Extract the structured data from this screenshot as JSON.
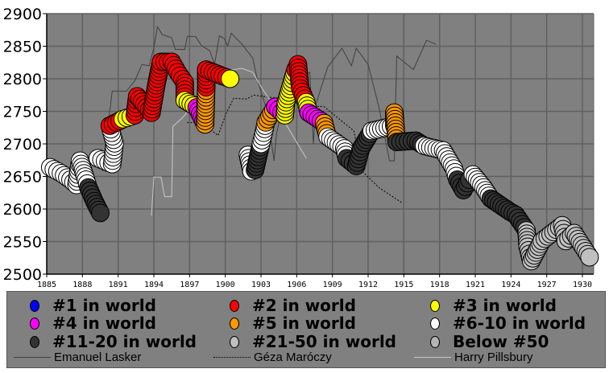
{
  "chart_data": {
    "type": "scatter",
    "title": "",
    "xlabel": "",
    "ylabel": "",
    "xlim": [
      1885,
      1931
    ],
    "ylim": [
      2500,
      2900
    ],
    "xticks": [
      "1885",
      "1888",
      "1891",
      "1894",
      "1897",
      "1900",
      "1903",
      "1906",
      "1909",
      "1912",
      "1915",
      "1918",
      "1921",
      "1924",
      "1927",
      "1930"
    ],
    "yticks": [
      "2500",
      "2550",
      "2600",
      "2650",
      "2700",
      "2750",
      "2800",
      "2850",
      "2900"
    ],
    "grid": true,
    "plot_background": "#808080",
    "categories": [
      {
        "key": "r1",
        "label": "#1 in world",
        "color": "#0000ff"
      },
      {
        "key": "r2",
        "label": "#2 in world",
        "color": "#ff0000"
      },
      {
        "key": "r3",
        "label": "#3 in world",
        "color": "#ffff00"
      },
      {
        "key": "r4",
        "label": "#4 in world",
        "color": "#ff00ff"
      },
      {
        "key": "r5",
        "label": "#5 in world",
        "color": "#ff9900"
      },
      {
        "key": "r6",
        "label": "#6-10 in world",
        "color": "#ffffff"
      },
      {
        "key": "r11",
        "label": "#11-20 in world",
        "color": "#333333"
      },
      {
        "key": "r21",
        "label": "#21-50 in world",
        "color": "#c0c0c0"
      },
      {
        "key": "r50",
        "label": "Below #50",
        "color": "#b4b4b4"
      }
    ],
    "points": [
      [
        1885.3,
        2664,
        "r6"
      ],
      [
        1886.2,
        2655,
        "r6"
      ],
      [
        1887.0,
        2645,
        "r6"
      ],
      [
        1887.5,
        2637,
        "r6"
      ],
      [
        1887.8,
        2674,
        "r6"
      ],
      [
        1888.3,
        2645,
        "r6"
      ],
      [
        1888.5,
        2633,
        "r11"
      ],
      [
        1889.0,
        2612,
        "r11"
      ],
      [
        1889.5,
        2594,
        "r11"
      ],
      [
        1889.3,
        2678,
        "r6"
      ],
      [
        1890.5,
        2669,
        "r6"
      ],
      [
        1890.7,
        2701,
        "r6"
      ],
      [
        1890.3,
        2728,
        "r2"
      ],
      [
        1891.4,
        2738,
        "r3"
      ],
      [
        1892.4,
        2744,
        "r2"
      ],
      [
        1892.6,
        2773,
        "r2"
      ],
      [
        1893.8,
        2748,
        "r2"
      ],
      [
        1894.2,
        2790,
        "r2"
      ],
      [
        1894.6,
        2826,
        "r2"
      ],
      [
        1895.5,
        2826,
        "r2"
      ],
      [
        1896.0,
        2810,
        "r2"
      ],
      [
        1896.6,
        2794,
        "r2"
      ],
      [
        1896.6,
        2767,
        "r3"
      ],
      [
        1897.6,
        2756,
        "r4"
      ],
      [
        1898.3,
        2730,
        "r5"
      ],
      [
        1898.4,
        2787,
        "r2"
      ],
      [
        1898.4,
        2814,
        "r2"
      ],
      [
        1899.8,
        2804,
        "r2"
      ],
      [
        1900.4,
        2800,
        "r3"
      ],
      [
        1901.9,
        2683,
        "r6"
      ],
      [
        1902.2,
        2658,
        "r6"
      ],
      [
        1902.5,
        2660,
        "r11"
      ],
      [
        1903.0,
        2700,
        "r6"
      ],
      [
        1903.3,
        2723,
        "r6"
      ],
      [
        1903.4,
        2733,
        "r5"
      ],
      [
        1904.2,
        2757,
        "r4"
      ],
      [
        1905.0,
        2744,
        "r3"
      ],
      [
        1905.1,
        2764,
        "r3"
      ],
      [
        1905.9,
        2814,
        "r2"
      ],
      [
        1906.1,
        2822,
        "r2"
      ],
      [
        1906.3,
        2785,
        "r2"
      ],
      [
        1906.8,
        2764,
        "r3"
      ],
      [
        1907.0,
        2748,
        "r4"
      ],
      [
        1908.3,
        2732,
        "r5"
      ],
      [
        1908.6,
        2711,
        "r6"
      ],
      [
        1910.0,
        2693,
        "r6"
      ],
      [
        1910.2,
        2678,
        "r11"
      ],
      [
        1911.0,
        2666,
        "r11"
      ],
      [
        1911.4,
        2693,
        "r11"
      ],
      [
        1912.3,
        2720,
        "r6"
      ],
      [
        1914.2,
        2728,
        "r6"
      ],
      [
        1914.2,
        2748,
        "r5"
      ],
      [
        1914.4,
        2703,
        "r11"
      ],
      [
        1916.0,
        2705,
        "r11"
      ],
      [
        1916.7,
        2697,
        "r6"
      ],
      [
        1918.3,
        2690,
        "r6"
      ],
      [
        1919.2,
        2662,
        "r6"
      ],
      [
        1919.5,
        2645,
        "r11"
      ],
      [
        1920.0,
        2629,
        "r11"
      ],
      [
        1920.5,
        2645,
        "r11"
      ],
      [
        1920.8,
        2653,
        "r6"
      ],
      [
        1921.7,
        2633,
        "r6"
      ],
      [
        1922.3,
        2616,
        "r11"
      ],
      [
        1923.9,
        2596,
        "r11"
      ],
      [
        1924.4,
        2591,
        "r11"
      ],
      [
        1925.3,
        2567,
        "r21"
      ],
      [
        1925.4,
        2542,
        "r21"
      ],
      [
        1925.7,
        2520,
        "r21"
      ],
      [
        1926.6,
        2551,
        "r21"
      ],
      [
        1928.3,
        2575,
        "r21"
      ],
      [
        1928.6,
        2551,
        "r21"
      ],
      [
        1929.3,
        2563,
        "r21"
      ],
      [
        1930.6,
        2526,
        "r21"
      ]
    ],
    "lines": [
      {
        "name": "Emanuel Lasker",
        "color": "#404040",
        "style": "solid",
        "points": [
          [
            1889.7,
            2658
          ],
          [
            1890.5,
            2781
          ],
          [
            1891.7,
            2781
          ],
          [
            1892.4,
            2797
          ],
          [
            1893,
            2822
          ],
          [
            1893.6,
            2820
          ],
          [
            1894,
            2847
          ],
          [
            1894.3,
            2880
          ],
          [
            1894.7,
            2868
          ],
          [
            1895.5,
            2863
          ],
          [
            1895.8,
            2845
          ],
          [
            1896.6,
            2845
          ],
          [
            1896.8,
            2865
          ],
          [
            1897.5,
            2865
          ],
          [
            1898,
            2851
          ],
          [
            1898.7,
            2843
          ],
          [
            1899.1,
            2822
          ],
          [
            1899.5,
            2866
          ],
          [
            1899.9,
            2862
          ],
          [
            1900.2,
            2851
          ],
          [
            1900.5,
            2870
          ],
          [
            1901.4,
            2853
          ],
          [
            1902.3,
            2832
          ],
          [
            1902.7,
            2798
          ],
          [
            1903.4,
            2757
          ],
          [
            1903.9,
            2699
          ],
          [
            1904.1,
            2674
          ],
          [
            1904.3,
            2715
          ],
          [
            1904.8,
            2757
          ],
          [
            1905.9,
            2801
          ],
          [
            1907.1,
            2810
          ],
          [
            1907.4,
            2700
          ],
          [
            1907.6,
            2760
          ],
          [
            1908.6,
            2818
          ],
          [
            1909.8,
            2847
          ],
          [
            1910.6,
            2820
          ],
          [
            1911,
            2847
          ],
          [
            1912,
            2822
          ],
          [
            1912.9,
            2757
          ],
          [
            1913.8,
            2674
          ],
          [
            1914.2,
            2674
          ],
          [
            1914.4,
            2835
          ],
          [
            1915.8,
            2814
          ],
          [
            1916.9,
            2859
          ],
          [
            1917.7,
            2853
          ]
        ]
      },
      {
        "name": "Géza Maróczy",
        "color": "#000000",
        "style": "dotted",
        "points": [
          [
            1896.8,
            2733
          ],
          [
            1898,
            2732
          ],
          [
            1899.4,
            2713
          ],
          [
            1900.1,
            2748
          ],
          [
            1900.7,
            2770
          ],
          [
            1901.8,
            2769
          ],
          [
            1902.4,
            2775
          ],
          [
            1903.1,
            2773
          ],
          [
            1904.5,
            2770
          ],
          [
            1906.5,
            2760
          ],
          [
            1908.3,
            2757
          ],
          [
            1910.8,
            2720
          ],
          [
            1911.5,
            2658
          ],
          [
            1912.9,
            2633
          ],
          [
            1914.8,
            2610
          ]
        ]
      },
      {
        "name": "Harry Pillsbury",
        "color": "#c8c8c8",
        "style": "solid",
        "points": [
          [
            1893.8,
            2590
          ],
          [
            1894,
            2649
          ],
          [
            1894.6,
            2649
          ],
          [
            1894.9,
            2619
          ],
          [
            1895.5,
            2619
          ],
          [
            1895.6,
            2727
          ],
          [
            1896.4,
            2740
          ],
          [
            1897.3,
            2760
          ],
          [
            1898.5,
            2777
          ],
          [
            1898.9,
            2814
          ],
          [
            1900.7,
            2814
          ],
          [
            1901.4,
            2816
          ],
          [
            1902.3,
            2810
          ],
          [
            1903.1,
            2785
          ],
          [
            1905.2,
            2727
          ],
          [
            1906.8,
            2678
          ]
        ]
      }
    ]
  }
}
